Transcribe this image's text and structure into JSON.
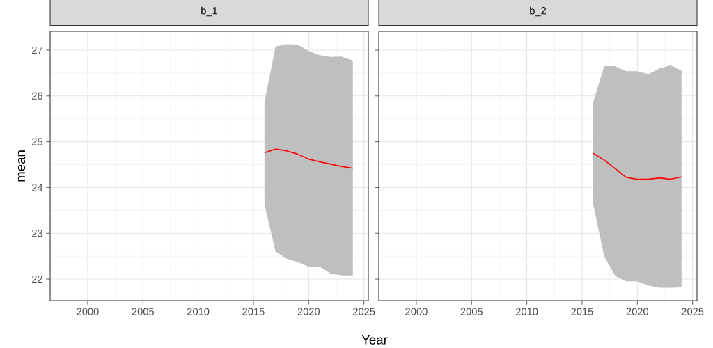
{
  "chart_data": [
    {
      "type": "line",
      "title": "b_1",
      "xlabel": "Year",
      "ylabel": "mean",
      "x": [
        2016,
        2017,
        2018,
        2019,
        2020,
        2021,
        2022,
        2023,
        2024
      ],
      "xlim": [
        1996.6,
        2025.4
      ],
      "ylim": [
        21.53,
        27.41
      ],
      "xticks": [
        2000,
        2005,
        2010,
        2015,
        2020,
        2025
      ],
      "yticks": [
        22,
        23,
        24,
        25,
        26,
        27
      ],
      "grid": true,
      "series": [
        {
          "color": "#ff0000",
          "values": [
            24.76,
            24.84,
            24.8,
            24.73,
            24.62,
            24.56,
            24.51,
            24.46,
            24.42
          ],
          "lower": [
            23.64,
            22.6,
            22.45,
            22.37,
            22.27,
            22.27,
            22.12,
            22.08,
            22.08
          ],
          "upper": [
            25.86,
            27.08,
            27.13,
            27.12,
            26.98,
            26.89,
            26.85,
            26.86,
            26.77
          ]
        }
      ]
    },
    {
      "type": "line",
      "title": "b_2",
      "x": [
        2016,
        2017,
        2018,
        2019,
        2020,
        2021,
        2022,
        2023,
        2024
      ],
      "xlim": [
        1996.6,
        2025.4
      ],
      "ylim": [
        21.53,
        27.41
      ],
      "xticks": [
        2000,
        2005,
        2010,
        2015,
        2020,
        2025
      ],
      "yticks": [
        22,
        23,
        24,
        25,
        26,
        27
      ],
      "grid": true,
      "tick_labels": "x",
      "series": [
        {
          "color": "#ff0000",
          "values": [
            24.75,
            24.6,
            24.41,
            24.22,
            24.18,
            24.18,
            24.21,
            24.18,
            24.23
          ],
          "lower": [
            23.64,
            22.5,
            22.07,
            21.95,
            21.95,
            21.86,
            21.81,
            21.81,
            21.82
          ],
          "upper": [
            25.86,
            26.65,
            26.65,
            26.54,
            26.54,
            26.47,
            26.6,
            26.67,
            26.55
          ]
        }
      ]
    }
  ]
}
